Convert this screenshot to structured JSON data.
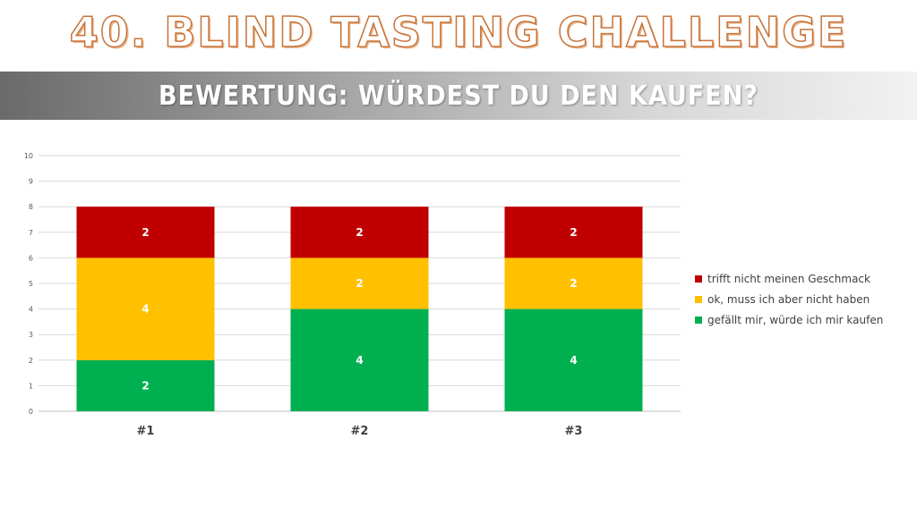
{
  "header": {
    "title": "40. BLIND TASTING CHALLENGE",
    "subtitle": "BEWERTUNG: WÜRDEST DU DEN KAUFEN?"
  },
  "chart_data": {
    "type": "bar",
    "stacked": true,
    "categories": [
      "#1",
      "#2",
      "#3"
    ],
    "series": [
      {
        "name": "gefällt mir, würde ich mir kaufen",
        "values": [
          2,
          4,
          4
        ],
        "color": "#00b050"
      },
      {
        "name": "ok, muss ich aber nicht haben",
        "values": [
          4,
          2,
          2
        ],
        "color": "#ffc000"
      },
      {
        "name": "trifft nicht meinen Geschmack",
        "values": [
          2,
          2,
          2
        ],
        "color": "#c00000"
      }
    ],
    "ylim": [
      0,
      10
    ],
    "yticks": [
      0,
      1,
      2,
      3,
      4,
      5,
      6,
      7,
      8,
      9,
      10
    ],
    "grid": true,
    "legend": "right",
    "data_labels": true
  }
}
